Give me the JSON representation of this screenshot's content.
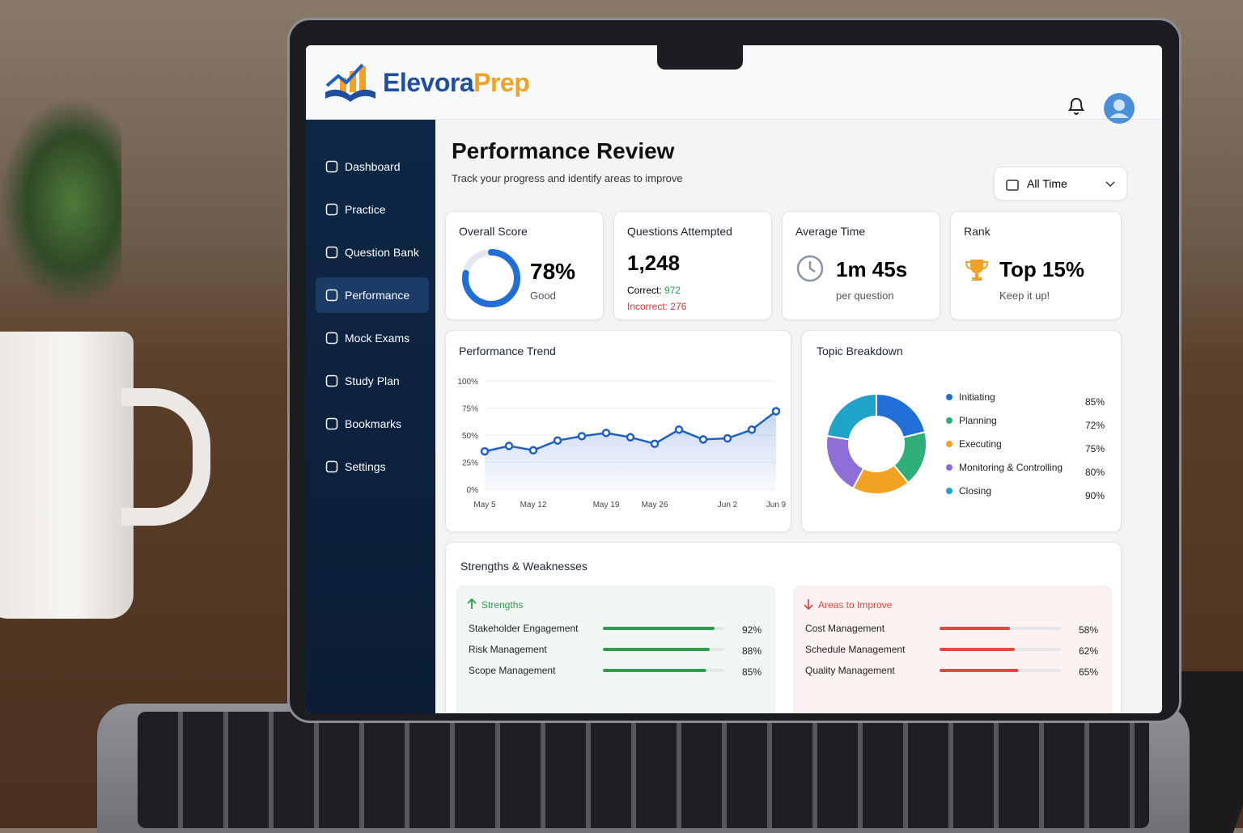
{
  "header": {
    "brand_primary": "Elevora",
    "brand_secondary": "Prep"
  },
  "nav": [
    "Dashboard",
    "Practice",
    "Question Bank",
    "Performance",
    "Mock Exams",
    "Study Plan",
    "Bookmarks",
    "Settings"
  ],
  "page": {
    "title": "Performance Review",
    "subtitle": "Track your progress and identify areas to improve",
    "filter": "All Time"
  },
  "cards": {
    "overall": {
      "title": "Overall Score",
      "value": 78,
      "value_label": "78%",
      "rating": "Good"
    },
    "questions": {
      "title": "Questions Attempted",
      "total": "1,248",
      "correct_label": "Correct:",
      "correct": "972",
      "incorrect_label": "Incorrect:",
      "incorrect": "276"
    },
    "time": {
      "title": "Average Time",
      "value": "1m 45s",
      "note": "per question"
    },
    "rank": {
      "title": "Rank",
      "value": "Top 15%",
      "note": "Keep it up!"
    }
  },
  "trend": {
    "type": "line",
    "title": "Performance Trend",
    "color": "#1f5fc4",
    "categories": [
      "May 5",
      null,
      "May 12",
      null,
      null,
      "May 19",
      null,
      "May 26",
      null,
      null,
      "Jun 2",
      null,
      "Jun 9"
    ],
    "values": [
      35,
      40,
      36,
      45,
      49,
      52,
      48,
      42,
      55,
      46,
      47,
      55,
      72
    ],
    "ylim": [
      0,
      100
    ],
    "yticks": [
      {
        "value": 0,
        "label": "0%"
      },
      {
        "value": 25,
        "label": "25%"
      },
      {
        "value": 50,
        "label": "50%"
      },
      {
        "value": 75,
        "label": "75%"
      },
      {
        "value": 100,
        "label": "100%"
      }
    ]
  },
  "topics": {
    "type": "pie",
    "title": "Topic Breakdown",
    "categories": [
      "Initiating",
      "Planning",
      "Executing",
      "Monitoring & Controlling",
      "Closing"
    ],
    "values": [
      85,
      72,
      75,
      80,
      90
    ],
    "value_labels": [
      "85%",
      "72%",
      "75%",
      "80%",
      "90%"
    ],
    "colors": [
      "#1f6fd6",
      "#2fae7a",
      "#f2a223",
      "#8e6fd8",
      "#1fa3c9"
    ]
  },
  "skills": {
    "title": "Strengths & Weaknesses",
    "strengths": {
      "title": "Strengths",
      "color": "#2e9b4f",
      "items": [
        {
          "name": "Stakeholder Engagement",
          "value": 92,
          "value_label": "92%"
        },
        {
          "name": "Risk Management",
          "value": 88,
          "value_label": "88%"
        },
        {
          "name": "Scope Management",
          "value": 85,
          "value_label": "85%"
        }
      ]
    },
    "improve": {
      "title": "Areas to Improve",
      "color": "#df4a40",
      "items": [
        {
          "name": "Cost Management",
          "value": 58,
          "value_label": "58%"
        },
        {
          "name": "Schedule Management",
          "value": 62,
          "value_label": "62%"
        },
        {
          "name": "Quality Management",
          "value": 65,
          "value_label": "65%"
        }
      ]
    }
  }
}
